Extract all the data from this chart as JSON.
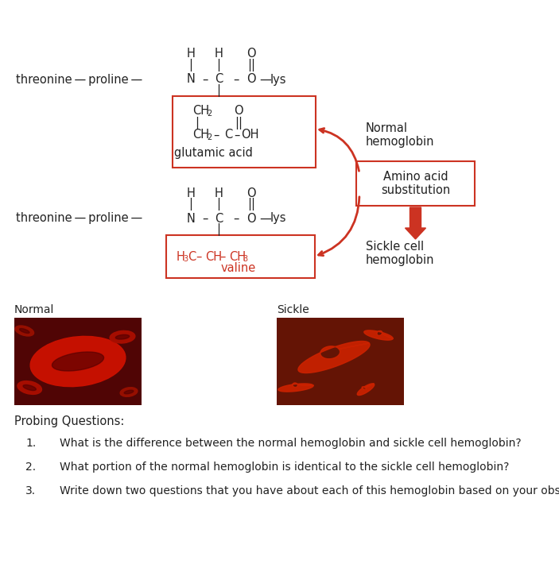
{
  "bg_color": "#ffffff",
  "red_color": "#cc3322",
  "black_color": "#222222",
  "normal_label": "Normal",
  "sickle_label": "Sickle",
  "probing_title": "Probing Questions:",
  "questions": [
    "What is the difference between the normal hemoglobin and sickle cell hemoglobin?",
    "What portion of the normal hemoglobin is identical to the sickle cell hemoglobin?",
    "Write down two questions that you have about each of this hemoglobin based on your observation?"
  ],
  "normal_hemo_label": "Normal\nhemoglobin",
  "sickle_hemo_label": "Sickle cell\nhemoglobin",
  "amino_acid_label": "Amino acid\nsubstitution",
  "glutamic_label": "glutamic acid",
  "valine_label": "valine"
}
